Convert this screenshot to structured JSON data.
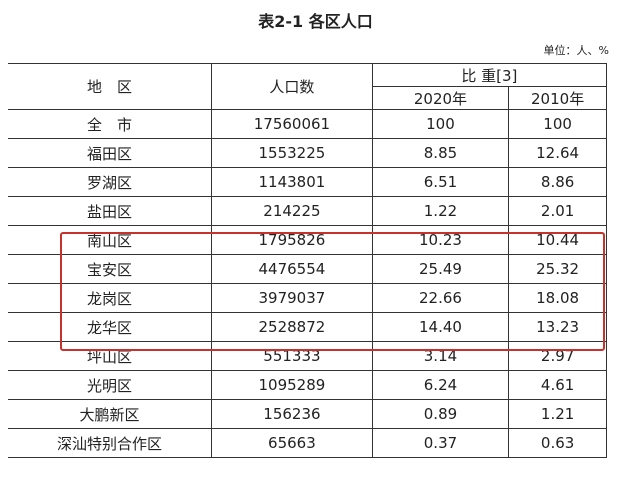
{
  "title": "表2-1 各区人口",
  "unit": "单位：人、%",
  "headers": {
    "region": "地　区",
    "population": "人口数",
    "ratio": "比 重[3]",
    "y2020": "2020年",
    "y2010": "2010年"
  },
  "rows": [
    {
      "region": "全　市",
      "population": "17560061",
      "r2020": "100",
      "r2010": "100"
    },
    {
      "region": "福田区",
      "population": "1553225",
      "r2020": "8.85",
      "r2010": "12.64"
    },
    {
      "region": "罗湖区",
      "population": "1143801",
      "r2020": "6.51",
      "r2010": "8.86"
    },
    {
      "region": "盐田区",
      "population": "214225",
      "r2020": "1.22",
      "r2010": "2.01"
    },
    {
      "region": "南山区",
      "population": "1795826",
      "r2020": "10.23",
      "r2010": "10.44"
    },
    {
      "region": "宝安区",
      "population": "4476554",
      "r2020": "25.49",
      "r2010": "25.32"
    },
    {
      "region": "龙岗区",
      "population": "3979037",
      "r2020": "22.66",
      "r2010": "18.08"
    },
    {
      "region": "龙华区",
      "population": "2528872",
      "r2020": "14.40",
      "r2010": "13.23"
    },
    {
      "region": "坪山区",
      "population": "551333",
      "r2020": "3.14",
      "r2010": "2.97"
    },
    {
      "region": "光明区",
      "population": "1095289",
      "r2020": "6.24",
      "r2010": "4.61"
    },
    {
      "region": "大鹏新区",
      "population": "156236",
      "r2020": "0.89",
      "r2010": "1.21"
    },
    {
      "region": "深汕特别合作区",
      "population": "65663",
      "r2020": "0.37",
      "r2010": "0.63"
    }
  ],
  "highlight_color": "#c8322c"
}
